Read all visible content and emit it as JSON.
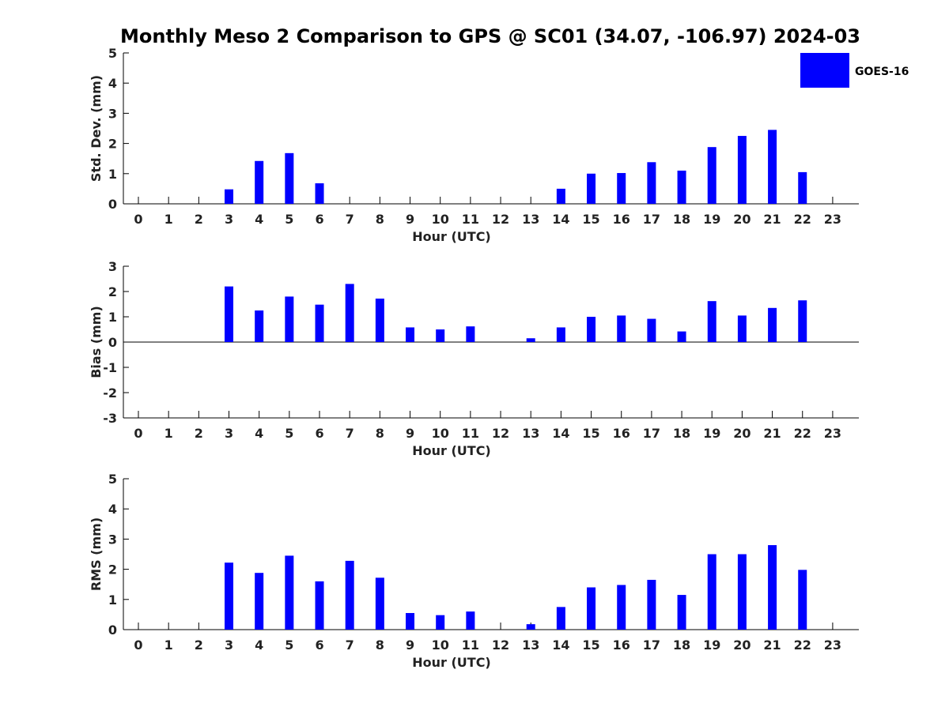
{
  "figure_title": "Monthly Meso 2 Comparison to GPS @ SC01 (34.07, -106.97) 2024-03",
  "legend": {
    "label": "GOES-16",
    "color": "#0000ff"
  },
  "chart_data": [
    {
      "type": "bar",
      "title": "",
      "xlabel": "Hour (UTC)",
      "ylabel": "Std. Dev. (mm)",
      "ylim": [
        0,
        5
      ],
      "yticks": [
        0,
        1,
        2,
        3,
        4,
        5
      ],
      "categories": [
        "0",
        "1",
        "2",
        "3",
        "4",
        "5",
        "6",
        "7",
        "8",
        "9",
        "10",
        "11",
        "12",
        "13",
        "14",
        "15",
        "16",
        "17",
        "18",
        "19",
        "20",
        "21",
        "22",
        "23"
      ],
      "series": [
        {
          "name": "GOES-16",
          "color": "#0000ff",
          "values": [
            null,
            null,
            null,
            0.48,
            1.42,
            1.68,
            0.68,
            null,
            null,
            null,
            null,
            null,
            null,
            null,
            0.5,
            1.0,
            1.02,
            1.38,
            1.1,
            1.88,
            2.25,
            2.45,
            1.05,
            null
          ]
        }
      ]
    },
    {
      "type": "bar",
      "title": "",
      "xlabel": "Hour (UTC)",
      "ylabel": "Bias (mm)",
      "ylim": [
        -3,
        3
      ],
      "yticks": [
        -3,
        -2,
        -1,
        0,
        1,
        2,
        3
      ],
      "categories": [
        "0",
        "1",
        "2",
        "3",
        "4",
        "5",
        "6",
        "7",
        "8",
        "9",
        "10",
        "11",
        "12",
        "13",
        "14",
        "15",
        "16",
        "17",
        "18",
        "19",
        "20",
        "21",
        "22",
        "23"
      ],
      "series": [
        {
          "name": "GOES-16",
          "color": "#0000ff",
          "values": [
            null,
            null,
            null,
            2.2,
            1.25,
            1.8,
            1.48,
            2.3,
            1.72,
            0.58,
            0.5,
            0.62,
            null,
            0.15,
            0.58,
            1.0,
            1.05,
            0.92,
            0.42,
            1.62,
            1.05,
            1.35,
            1.65,
            null
          ]
        }
      ]
    },
    {
      "type": "bar",
      "title": "",
      "xlabel": "Hour (UTC)",
      "ylabel": "RMS (mm)",
      "ylim": [
        0,
        5
      ],
      "yticks": [
        0,
        1,
        2,
        3,
        4,
        5
      ],
      "categories": [
        "0",
        "1",
        "2",
        "3",
        "4",
        "5",
        "6",
        "7",
        "8",
        "9",
        "10",
        "11",
        "12",
        "13",
        "14",
        "15",
        "16",
        "17",
        "18",
        "19",
        "20",
        "21",
        "22",
        "23"
      ],
      "series": [
        {
          "name": "GOES-16",
          "color": "#0000ff",
          "values": [
            null,
            null,
            null,
            2.22,
            1.88,
            2.45,
            1.6,
            2.28,
            1.72,
            0.55,
            0.48,
            0.6,
            null,
            0.18,
            0.75,
            1.4,
            1.48,
            1.65,
            1.15,
            2.5,
            2.5,
            2.8,
            1.98,
            null
          ]
        }
      ]
    }
  ]
}
